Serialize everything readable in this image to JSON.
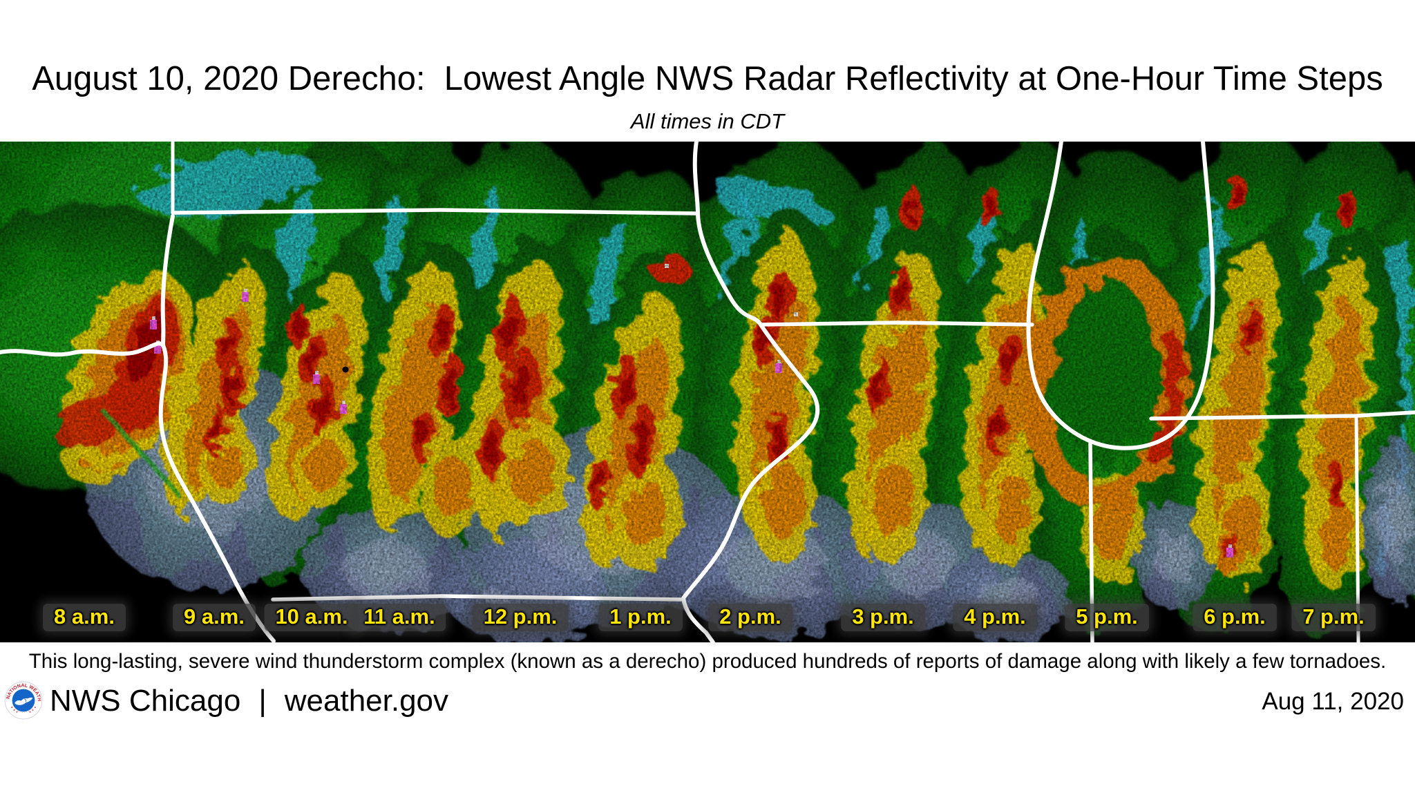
{
  "title": "August 10, 2020 Derecho:  Lowest Angle NWS Radar Reflectivity at One-Hour Time Steps",
  "subtitle": "All times in CDT",
  "radar": {
    "time_labels": [
      "8 a.m.",
      "9 a.m.",
      "10 a.m.",
      "11 a.m.",
      "12 p.m.",
      "1 p.m.",
      "2 p.m.",
      "3 p.m.",
      "4 p.m.",
      "5 p.m.",
      "6 p.m.",
      "7 p.m."
    ],
    "label_text_color": "#ffe600",
    "label_box_color": "rgba(62,62,62,0.82)",
    "background_color": "#000000",
    "state_border_color": "#ffffff",
    "reflectivity_palette": {
      "light_rain_blue_gray": "#8292c2",
      "cyan": "#2cc3d8",
      "green": "#129112",
      "bright_green": "#22c41e",
      "yellow": "#f5d800",
      "orange": "#f08800",
      "red": "#e02800",
      "dark_red": "#a80000",
      "extreme_magenta": "#ff5cff"
    }
  },
  "caption": "This long-lasting, severe wind thunderstorm complex (known as a derecho) produced hundreds of reports of damage along with likely a few tornadoes.",
  "footer": {
    "logo": "nws-seal",
    "logo_ring_text_top": "NATIONAL WEATHER",
    "logo_ring_text_bottom": "SERVICE",
    "agency": "NWS Chicago",
    "separator": "|",
    "site": "weather.gov",
    "date": "Aug 11, 2020"
  }
}
